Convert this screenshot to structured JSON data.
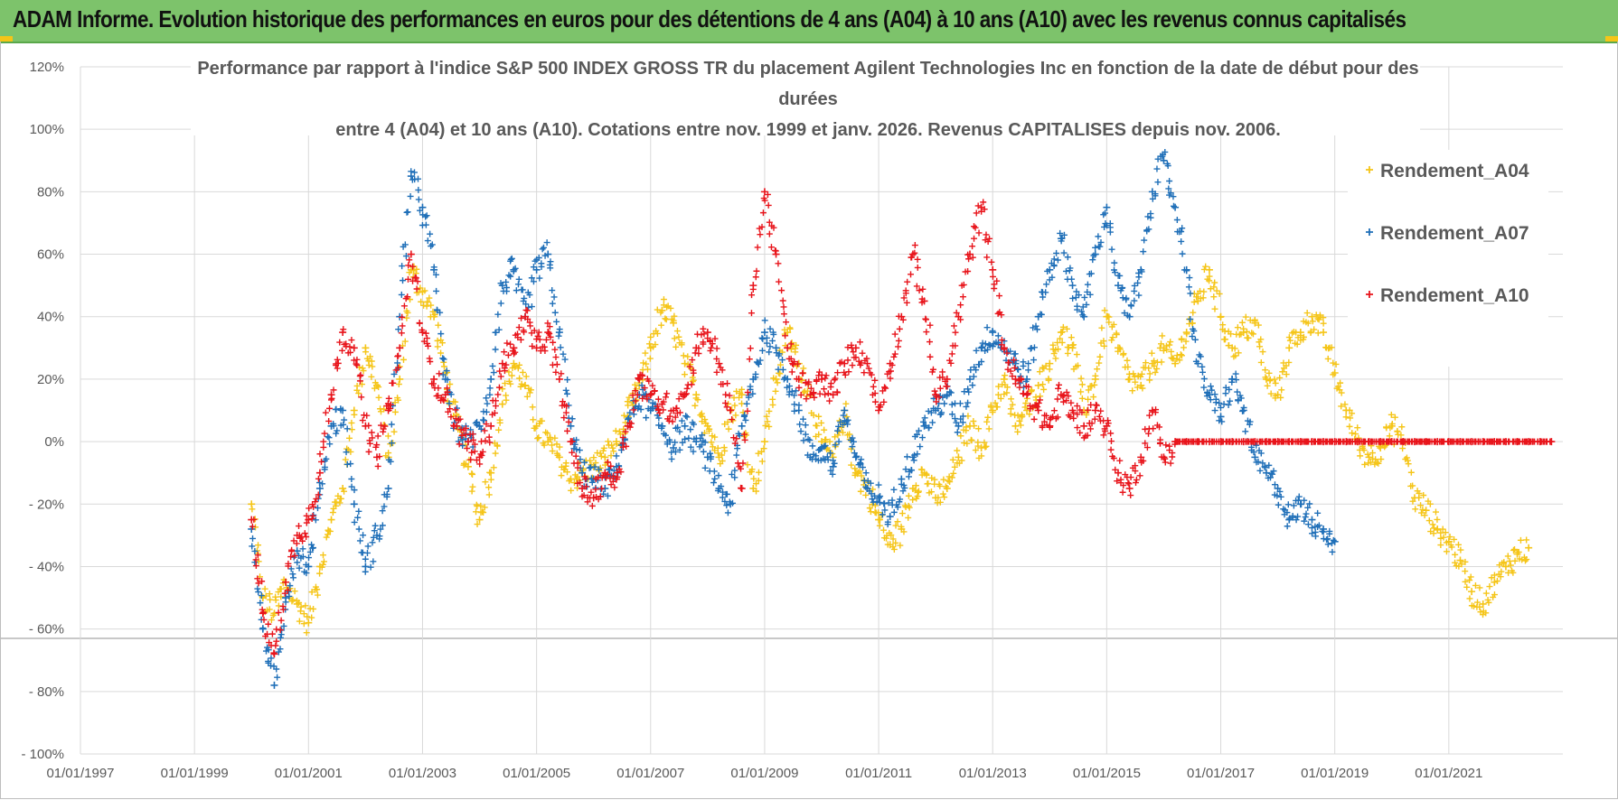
{
  "banner": {
    "title": "ADAM Informe. Evolution historique des performances en euros pour des détentions de 4 ans (A04) à 10 ans (A10) avec les revenus connus capitalisés"
  },
  "colors": {
    "banner_bg": "#7dc36b",
    "A04": "#f5c518",
    "A07": "#1f6fb8",
    "A10": "#e8141b",
    "grid": "#d9d9d9",
    "text": "#595959"
  },
  "chart_data": {
    "type": "scatter",
    "marker": "+",
    "title_lines": [
      "Performance par rapport à l'indice S&P 500 INDEX GROSS TR  du placement Agilent Technologies Inc en fonction de la date de début pour des",
      "durées",
      "entre 4 (A04) et 10 ans (A10). Cotations entre nov. 1999 et janv. 2026. Revenus CAPITALISES depuis nov. 2006."
    ],
    "xlabel": "",
    "ylabel": "",
    "x_ticks": [
      "01/01/1997",
      "01/01/1999",
      "01/01/2001",
      "01/01/2003",
      "01/01/2005",
      "01/01/2007",
      "01/01/2009",
      "01/01/2011",
      "01/01/2013",
      "01/01/2015",
      "01/01/2017",
      "01/01/2019",
      "01/01/2021"
    ],
    "xlim": [
      1997.0,
      2023.0
    ],
    "y_ticks": [
      "120%",
      "100%",
      "80%",
      "60%",
      "40%",
      "20%",
      "0%",
      "- 20%",
      "- 40%",
      "- 60%",
      "- 80%",
      "- 100%"
    ],
    "ylim": [
      -100,
      120
    ],
    "legend_position": "right",
    "series": [
      {
        "name": "Rendement_A04",
        "color": "#f5c518",
        "x": [
          2000.0,
          2000.2,
          2000.4,
          2000.6,
          2000.8,
          2001.0,
          2001.2,
          2001.4,
          2001.6,
          2001.8,
          2002.0,
          2002.2,
          2002.4,
          2002.6,
          2002.8,
          2003.0,
          2003.2,
          2003.4,
          2003.6,
          2003.8,
          2004.0,
          2004.2,
          2004.4,
          2004.6,
          2004.8,
          2005.0,
          2005.2,
          2005.4,
          2005.6,
          2005.8,
          2006.0,
          2006.2,
          2006.4,
          2006.6,
          2006.8,
          2007.0,
          2007.2,
          2007.4,
          2007.6,
          2007.8,
          2008.0,
          2008.2,
          2008.4,
          2008.6,
          2008.8,
          2009.0,
          2009.2,
          2009.4,
          2009.6,
          2009.8,
          2010.0,
          2010.2,
          2010.4,
          2010.6,
          2010.8,
          2011.0,
          2011.2,
          2011.4,
          2011.6,
          2011.8,
          2012.0,
          2012.2,
          2012.4,
          2012.6,
          2012.8,
          2013.0,
          2013.2,
          2013.4,
          2013.6,
          2013.8,
          2014.0,
          2014.2,
          2014.4,
          2014.6,
          2014.8,
          2015.0,
          2015.2,
          2015.4,
          2015.6,
          2015.8,
          2016.0,
          2016.2,
          2016.4,
          2016.6,
          2016.8,
          2017.0,
          2017.2,
          2017.4,
          2017.6,
          2017.8,
          2018.0,
          2018.2,
          2018.4,
          2018.6,
          2018.8,
          2019.0,
          2019.2,
          2019.4,
          2019.6,
          2019.8,
          2020.0,
          2020.2,
          2020.4,
          2020.6,
          2020.8,
          2021.0,
          2021.2,
          2021.4,
          2021.6,
          2021.8,
          2022.0,
          2022.2,
          2022.4
        ],
        "values": [
          -20,
          -50,
          -55,
          -45,
          -52,
          -58,
          -40,
          -25,
          -15,
          10,
          30,
          18,
          -5,
          20,
          55,
          48,
          40,
          22,
          5,
          -8,
          -25,
          -10,
          12,
          25,
          18,
          5,
          0,
          -5,
          -12,
          -10,
          -8,
          -5,
          0,
          8,
          18,
          30,
          42,
          38,
          25,
          15,
          5,
          -5,
          10,
          15,
          -15,
          0,
          20,
          35,
          25,
          15,
          0,
          -5,
          10,
          -10,
          -15,
          -25,
          -33,
          -28,
          -15,
          -10,
          -18,
          -15,
          -5,
          5,
          -2,
          10,
          20,
          5,
          10,
          18,
          25,
          35,
          30,
          10,
          20,
          40,
          30,
          20,
          18,
          25,
          30,
          25,
          35,
          45,
          55,
          40,
          30,
          35,
          38,
          20,
          15,
          30,
          35,
          40,
          35,
          22,
          10,
          0,
          -5,
          -2,
          5,
          0,
          -18,
          -22,
          -28,
          -32,
          -38,
          -48,
          -52,
          -45,
          -40,
          -36,
          -34
        ]
      },
      {
        "name": "Rendement_A07",
        "color": "#1f6fb8",
        "x": [
          2000.0,
          2000.2,
          2000.4,
          2000.6,
          2000.8,
          2001.0,
          2001.2,
          2001.4,
          2001.6,
          2001.8,
          2002.0,
          2002.2,
          2002.4,
          2002.6,
          2002.8,
          2003.0,
          2003.2,
          2003.4,
          2003.6,
          2003.8,
          2004.0,
          2004.2,
          2004.4,
          2004.6,
          2004.8,
          2005.0,
          2005.2,
          2005.4,
          2005.6,
          2005.8,
          2006.0,
          2006.2,
          2006.4,
          2006.6,
          2006.8,
          2007.0,
          2007.2,
          2007.4,
          2007.6,
          2007.8,
          2008.0,
          2008.2,
          2008.4,
          2008.6,
          2008.8,
          2009.0,
          2009.2,
          2009.4,
          2009.6,
          2009.8,
          2010.0,
          2010.2,
          2010.4,
          2010.6,
          2010.8,
          2011.0,
          2011.2,
          2011.4,
          2011.6,
          2011.8,
          2012.0,
          2012.2,
          2012.4,
          2012.6,
          2012.8,
          2013.0,
          2013.2,
          2013.4,
          2013.6,
          2013.8,
          2014.0,
          2014.2,
          2014.4,
          2014.6,
          2014.8,
          2015.0,
          2015.2,
          2015.4,
          2015.6,
          2015.8,
          2016.0,
          2016.2,
          2016.4,
          2016.6,
          2016.8,
          2017.0,
          2017.2,
          2017.4,
          2017.6,
          2017.8,
          2018.0,
          2018.2,
          2018.4,
          2018.6,
          2018.8,
          2019.0
        ],
        "values": [
          -28,
          -60,
          -78,
          -50,
          -35,
          -40,
          -15,
          5,
          10,
          -20,
          -40,
          -30,
          -15,
          40,
          85,
          75,
          55,
          20,
          5,
          0,
          5,
          20,
          50,
          55,
          40,
          55,
          60,
          35,
          5,
          -10,
          -12,
          -15,
          -8,
          5,
          15,
          10,
          5,
          -2,
          5,
          0,
          -5,
          -15,
          -20,
          5,
          20,
          35,
          30,
          20,
          10,
          -5,
          -2,
          -8,
          10,
          -5,
          -15,
          -18,
          -24,
          -12,
          -5,
          5,
          10,
          15,
          5,
          20,
          30,
          35,
          30,
          25,
          20,
          40,
          55,
          65,
          50,
          40,
          60,
          75,
          50,
          40,
          55,
          80,
          90,
          75,
          55,
          25,
          15,
          8,
          20,
          10,
          -5,
          -10,
          -15,
          -25,
          -20,
          -25,
          -28,
          -32
        ]
      },
      {
        "name": "Rendement_A10",
        "color": "#e8141b",
        "x": [
          2000.0,
          2000.2,
          2000.4,
          2000.6,
          2000.8,
          2001.0,
          2001.2,
          2001.4,
          2001.6,
          2001.8,
          2002.0,
          2002.2,
          2002.4,
          2002.6,
          2002.8,
          2003.0,
          2003.2,
          2003.4,
          2003.6,
          2003.8,
          2004.0,
          2004.2,
          2004.4,
          2004.6,
          2004.8,
          2005.0,
          2005.2,
          2005.4,
          2005.6,
          2005.8,
          2006.0,
          2006.2,
          2006.4,
          2006.6,
          2006.8,
          2007.0,
          2007.2,
          2007.4,
          2007.6,
          2007.8,
          2008.0,
          2008.2,
          2008.4,
          2008.6,
          2008.8,
          2009.0,
          2009.2,
          2009.4,
          2009.6,
          2009.8,
          2010.0,
          2010.2,
          2010.4,
          2010.6,
          2010.8,
          2011.0,
          2011.2,
          2011.4,
          2011.6,
          2011.8,
          2012.0,
          2012.2,
          2012.4,
          2012.6,
          2012.8,
          2013.0,
          2013.2,
          2013.4,
          2013.6,
          2013.8,
          2014.0,
          2014.2,
          2014.4,
          2014.6,
          2014.8,
          2015.0,
          2015.2,
          2015.4,
          2015.6,
          2015.8,
          2016.0,
          2016.2,
          2016.4,
          2016.6,
          2016.8,
          2017.0,
          2017.2,
          2017.4,
          2017.6,
          2017.8,
          2018.0,
          2018.2,
          2018.4,
          2018.6,
          2018.8,
          2019.0,
          2019.2,
          2019.4,
          2019.6,
          2019.8,
          2020.0,
          2020.2,
          2020.4,
          2020.6,
          2020.8,
          2021.0,
          2021.2,
          2021.4,
          2021.6,
          2021.8,
          2022.0,
          2022.2,
          2022.4,
          2022.6,
          2022.8
        ],
        "values": [
          -25,
          -55,
          -68,
          -45,
          -30,
          -25,
          -10,
          15,
          35,
          30,
          5,
          -5,
          10,
          30,
          60,
          35,
          20,
          15,
          5,
          0,
          -5,
          5,
          25,
          30,
          40,
          30,
          35,
          20,
          0,
          -15,
          -18,
          -10,
          -12,
          5,
          20,
          15,
          12,
          10,
          15,
          30,
          35,
          25,
          10,
          -15,
          50,
          80,
          60,
          30,
          20,
          15,
          20,
          15,
          25,
          30,
          25,
          10,
          25,
          40,
          60,
          45,
          15,
          20,
          40,
          60,
          75,
          55,
          30,
          20,
          15,
          10,
          5,
          15,
          10,
          5,
          10,
          5,
          -10,
          -15,
          -5,
          10,
          -5,
          0,
          0,
          0,
          0,
          0,
          0,
          0,
          0,
          0,
          0,
          0,
          0,
          0,
          0,
          0,
          0,
          0,
          0,
          0,
          0,
          0,
          0,
          0,
          0,
          0,
          0,
          0,
          0,
          0,
          0,
          0,
          0,
          0,
          0
        ]
      }
    ]
  }
}
